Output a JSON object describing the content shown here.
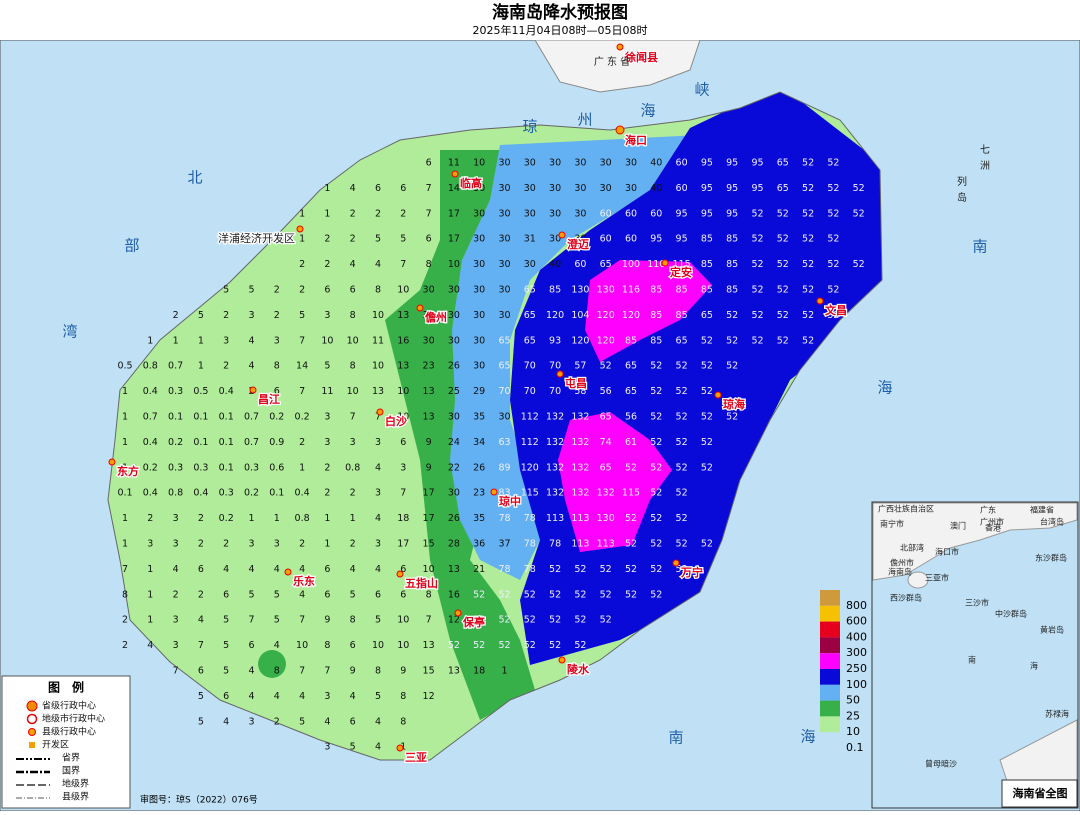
{
  "header": {
    "title": "海南岛降水预报图",
    "subtitle": "2025年11月04日08时—05日08时"
  },
  "grid": {
    "rows": [
      [
        null,
        null,
        null,
        null,
        null,
        null,
        null,
        null,
        null,
        null,
        null,
        null,
        6,
        11,
        10,
        30,
        30,
        30,
        30,
        30,
        30,
        40,
        60,
        95,
        95,
        95,
        65,
        52,
        52,
        null
      ],
      [
        null,
        null,
        null,
        null,
        null,
        null,
        null,
        null,
        1,
        4,
        6,
        6,
        7,
        14,
        30,
        30,
        30,
        30,
        30,
        30,
        30,
        40,
        60,
        95,
        95,
        95,
        65,
        52,
        52,
        52
      ],
      [
        null,
        null,
        null,
        null,
        null,
        null,
        null,
        1,
        1,
        2,
        2,
        2,
        7,
        17,
        30,
        30,
        30,
        30,
        30,
        60,
        60,
        60,
        95,
        95,
        95,
        52,
        52,
        52,
        52,
        52
      ],
      [
        null,
        null,
        null,
        null,
        null,
        null,
        null,
        1,
        2,
        2,
        5,
        5,
        6,
        17,
        30,
        30,
        31,
        30,
        30,
        60,
        60,
        95,
        95,
        85,
        85,
        52,
        52,
        52,
        52,
        null
      ],
      [
        null,
        null,
        null,
        null,
        null,
        null,
        null,
        2,
        2,
        4,
        4,
        7,
        8,
        10,
        30,
        30,
        30,
        40,
        60,
        65,
        100,
        110,
        115,
        85,
        85,
        52,
        52,
        52,
        52,
        52
      ],
      [
        null,
        null,
        null,
        null,
        5,
        5,
        2,
        2,
        6,
        6,
        8,
        10,
        30,
        30,
        30,
        30,
        65,
        85,
        130,
        130,
        116,
        85,
        85,
        85,
        85,
        52,
        52,
        52,
        52,
        null
      ],
      [
        null,
        null,
        2,
        5,
        2,
        3,
        2,
        5,
        3,
        8,
        10,
        13,
        30,
        30,
        30,
        30,
        65,
        120,
        104,
        120,
        120,
        85,
        85,
        65,
        52,
        52,
        52,
        52,
        52,
        null
      ],
      [
        null,
        1,
        1,
        1,
        3,
        4,
        3,
        7,
        10,
        10,
        11,
        16,
        30,
        30,
        30,
        65,
        65,
        93,
        120,
        120,
        85,
        85,
        65,
        52,
        52,
        52,
        52,
        52,
        null,
        null
      ],
      [
        0.5,
        0.8,
        0.7,
        1,
        2,
        4,
        8,
        14,
        5,
        8,
        10,
        13,
        23,
        26,
        30,
        65,
        70,
        70,
        57,
        52,
        65,
        52,
        52,
        52,
        52,
        null,
        null,
        null,
        null,
        null
      ],
      [
        1,
        0.4,
        0.3,
        0.5,
        0.4,
        2,
        6,
        7,
        11,
        10,
        13,
        10,
        13,
        25,
        29,
        70,
        70,
        70,
        58,
        56,
        65,
        52,
        52,
        52,
        null,
        null,
        null,
        null,
        null,
        null
      ],
      [
        1,
        0.7,
        0.1,
        0.1,
        0.1,
        0.7,
        0.2,
        0.2,
        3,
        7,
        7,
        10,
        13,
        30,
        35,
        30,
        112,
        132,
        132,
        65,
        56,
        52,
        52,
        52,
        52,
        null,
        null,
        null,
        null,
        null
      ],
      [
        1,
        0.4,
        0.2,
        0.1,
        0.1,
        0.7,
        0.9,
        2,
        3,
        3,
        3,
        6,
        9,
        24,
        34,
        63,
        112,
        132,
        132,
        74,
        61,
        52,
        52,
        52,
        null,
        null,
        null,
        null,
        null,
        null
      ],
      [
        1,
        0.2,
        0.3,
        0.3,
        0.1,
        0.3,
        0.6,
        1,
        2,
        0.8,
        4,
        3,
        9,
        22,
        26,
        89,
        120,
        132,
        132,
        65,
        52,
        52,
        52,
        52,
        null,
        null,
        null,
        null,
        null,
        null
      ],
      [
        0.1,
        0.4,
        0.8,
        0.4,
        0.3,
        0.2,
        0.1,
        0.4,
        2,
        2,
        3,
        7,
        17,
        30,
        23,
        83,
        115,
        132,
        132,
        132,
        115,
        52,
        52,
        null,
        null,
        null,
        null,
        null,
        null,
        null
      ],
      [
        1,
        2,
        3,
        2,
        0.2,
        1,
        1,
        0.8,
        1,
        1,
        4,
        18,
        17,
        26,
        35,
        78,
        78,
        113,
        113,
        130,
        52,
        52,
        52,
        null,
        null,
        null,
        null,
        null,
        null,
        null
      ],
      [
        1,
        3,
        3,
        2,
        2,
        3,
        3,
        2,
        1,
        2,
        3,
        17,
        15,
        28,
        36,
        37,
        78,
        78,
        113,
        113,
        52,
        52,
        52,
        52,
        null,
        null,
        null,
        null,
        null,
        null
      ],
      [
        7,
        1,
        4,
        6,
        4,
        4,
        4,
        4,
        6,
        4,
        4,
        6,
        10,
        13,
        21,
        78,
        78,
        52,
        52,
        52,
        52,
        52,
        52,
        null,
        null,
        null,
        null,
        null,
        null,
        null
      ],
      [
        8,
        1,
        2,
        2,
        6,
        5,
        5,
        4,
        6,
        5,
        6,
        6,
        8,
        16,
        52,
        52,
        52,
        52,
        52,
        52,
        52,
        52,
        null,
        null,
        null,
        null,
        null,
        null,
        null,
        null
      ],
      [
        2,
        1,
        3,
        4,
        5,
        7,
        5,
        7,
        9,
        8,
        5,
        10,
        7,
        12,
        52,
        52,
        52,
        52,
        52,
        52,
        null,
        null,
        null,
        null,
        null,
        null,
        null,
        null,
        null,
        null
      ],
      [
        2,
        4,
        3,
        7,
        5,
        6,
        4,
        10,
        8,
        6,
        10,
        10,
        13,
        52,
        52,
        52,
        52,
        52,
        52,
        null,
        null,
        null,
        null,
        null,
        null,
        null,
        null,
        null,
        null,
        null
      ],
      [
        null,
        null,
        7,
        6,
        5,
        4,
        8,
        7,
        7,
        9,
        8,
        9,
        15,
        13,
        18,
        1,
        null,
        null,
        null,
        null,
        null,
        null,
        null,
        null,
        null,
        null,
        null,
        null,
        null,
        null
      ],
      [
        null,
        null,
        null,
        5,
        6,
        4,
        4,
        4,
        3,
        4,
        5,
        8,
        12,
        null,
        null,
        null,
        null,
        null,
        null,
        null,
        null,
        null,
        null,
        null,
        null,
        null,
        null,
        null,
        null,
        null
      ],
      [
        null,
        null,
        null,
        5,
        4,
        3,
        2,
        5,
        4,
        6,
        4,
        8,
        null,
        null,
        null,
        null,
        null,
        null,
        null,
        null,
        null,
        null,
        null,
        null,
        null,
        null,
        null,
        null,
        null,
        null
      ],
      [
        null,
        null,
        null,
        null,
        null,
        null,
        null,
        null,
        3,
        5,
        4,
        1,
        null,
        null,
        null,
        null,
        null,
        null,
        null,
        null,
        null,
        null,
        null,
        null,
        null,
        null,
        null,
        null,
        null,
        null
      ]
    ]
  },
  "cities": [
    "海口",
    "临高",
    "澄迈",
    "定安",
    "文昌",
    "儋州",
    "屯昌",
    "琼海",
    "昌江",
    "白沙",
    "东方",
    "琼中",
    "万宁",
    "乐东",
    "五指山",
    "保亭",
    "陵水",
    "三亚",
    "洋浦经济开发区",
    "徐闻县"
  ],
  "places": [
    "广 东 省",
    "七",
    "洲",
    "列",
    "岛"
  ],
  "sea_labels": [
    "琼",
    "州",
    "海",
    "峡",
    "北",
    "部",
    "湾",
    "南",
    "海",
    "南",
    "海"
  ],
  "scale": {
    "labels": [
      800,
      600,
      400,
      300,
      250,
      100,
      50,
      25,
      10,
      0.1
    ],
    "colors": [
      "#cf9a3c",
      "#f6c200",
      "#e6001e",
      "#9a0042",
      "#ff00ff",
      "#0a0ad8",
      "#63b0f2",
      "#38b04a",
      "#b0ec9a"
    ]
  },
  "legend": {
    "title": "图　例",
    "items": [
      "省级行政中心",
      "地级市行政中心",
      "县级行政中心",
      "开发区",
      "省界",
      "国界",
      "地级界",
      "县级界"
    ]
  },
  "approval": "审图号：琼S（2022）076号",
  "inset": {
    "title": "海南省全图",
    "labels": [
      "广西壮族自治区",
      "广东",
      "福建省",
      "南宁市",
      "广州市",
      "澳门",
      "香港",
      "台湾岛",
      "海口市",
      "三亚市",
      "儋州市",
      "北部湾",
      "海南岛",
      "东沙群岛",
      "西沙群岛",
      "三沙市",
      "中沙群岛",
      "黄岩岛",
      "南",
      "海",
      "苏禄海",
      "曾母暗沙"
    ]
  }
}
